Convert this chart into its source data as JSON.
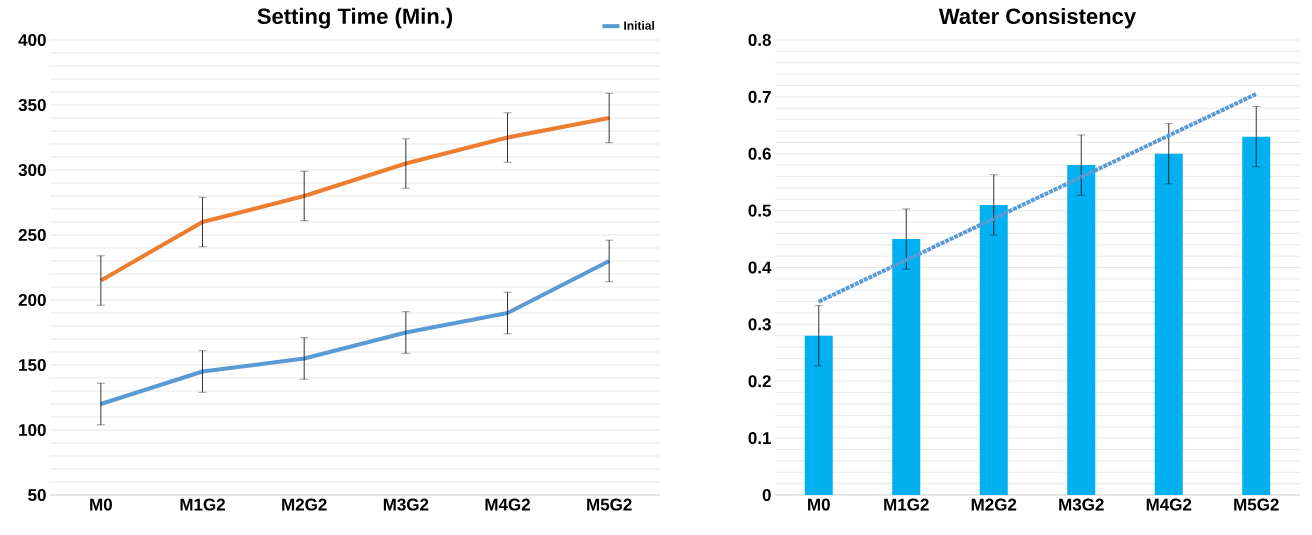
{
  "chart_data": [
    {
      "type": "line",
      "title": "Setting Time (Min.)",
      "categories": [
        "M0",
        "M1G2",
        "M2G2",
        "M3G2",
        "M4G2",
        "M5G2"
      ],
      "ylim": [
        50,
        400
      ],
      "yticks": [
        50,
        100,
        150,
        200,
        250,
        300,
        350,
        400
      ],
      "grid": true,
      "legend": "top right",
      "series": [
        {
          "name": "Initial",
          "color": "#5b9bd5",
          "values": [
            120,
            145,
            155,
            175,
            190,
            230
          ],
          "errors": [
            16,
            16,
            16,
            16,
            16,
            16
          ]
        },
        {
          "color": "#ed7d31",
          "values": [
            215,
            260,
            280,
            305,
            325,
            340
          ],
          "errors": [
            19,
            19,
            19,
            19,
            19,
            19
          ]
        }
      ]
    },
    {
      "type": "bar",
      "title": "Water Consistency",
      "categories": [
        "M0",
        "M1G2",
        "M2G2",
        "M3G2",
        "M4G2",
        "M5G2"
      ],
      "ylim": [
        0,
        0.8
      ],
      "yticks": [
        0,
        0.1,
        0.2,
        0.3,
        0.4,
        0.5,
        0.6,
        0.7,
        0.8
      ],
      "grid": true,
      "series": [
        {
          "color": "#00b0f0",
          "values": [
            0.28,
            0.45,
            0.51,
            0.58,
            0.6,
            0.63
          ],
          "errors": [
            0.053,
            0.053,
            0.053,
            0.053,
            0.053,
            0.053
          ]
        },
        {
          "type": "line",
          "line_style": "dotted",
          "color": "#5b9bd5",
          "values": [
            0.34,
            0.413,
            0.486,
            0.559,
            0.632,
            0.705
          ]
        }
      ]
    }
  ]
}
